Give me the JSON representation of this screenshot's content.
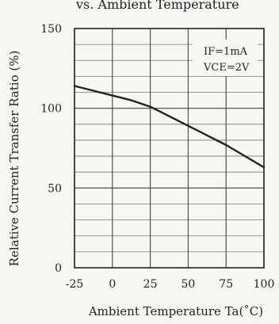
{
  "chart_data": {
    "type": "line",
    "title": "vs. Ambient Temperature",
    "xlabel": "Ambient Temperature Ta(˚C)",
    "ylabel": "Relative Current Transfer Ratio (%)",
    "xlim": [
      -25,
      100
    ],
    "ylim": [
      0,
      150
    ],
    "x_ticks": [
      "-25",
      "0",
      "25",
      "50",
      "75",
      "100"
    ],
    "y_ticks": [
      "0",
      "50",
      "100",
      "150"
    ],
    "grid": true,
    "annotation": [
      "IF=1mA",
      "VCE=2V"
    ],
    "series": [
      {
        "x": [
          -25,
          -12.5,
          0,
          12.5,
          25,
          37.5,
          50,
          62.5,
          75,
          87.5,
          100
        ],
        "y": [
          114,
          111,
          108,
          105,
          101,
          95,
          89,
          83,
          77,
          70,
          63
        ]
      }
    ]
  }
}
